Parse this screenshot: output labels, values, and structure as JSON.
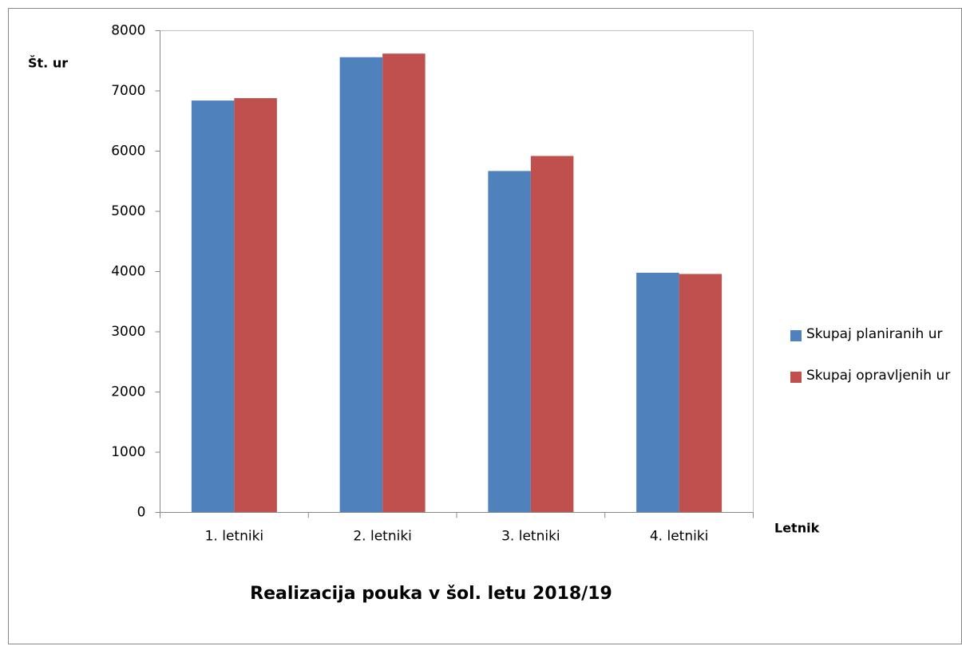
{
  "chart_data": {
    "type": "bar",
    "title": "Realizacija pouka v šol. letu 2018/19",
    "y_label": "Št. ur",
    "x_label": "Letnik",
    "categories": [
      "1. letniki",
      "2. letniki",
      "3. letniki",
      "4. letniki"
    ],
    "series": [
      {
        "name": "Skupaj planiranih ur",
        "color": "#4f81bd",
        "values": [
          6840,
          7560,
          5670,
          3980
        ]
      },
      {
        "name": "Skupaj opravljenih ur",
        "color": "#c0504d",
        "values": [
          6880,
          7620,
          5920,
          3960
        ]
      }
    ],
    "ylim": [
      0,
      8000
    ],
    "yticks": [
      0,
      1000,
      2000,
      3000,
      4000,
      5000,
      6000,
      7000,
      8000
    ],
    "grid": false,
    "legend": "right"
  }
}
